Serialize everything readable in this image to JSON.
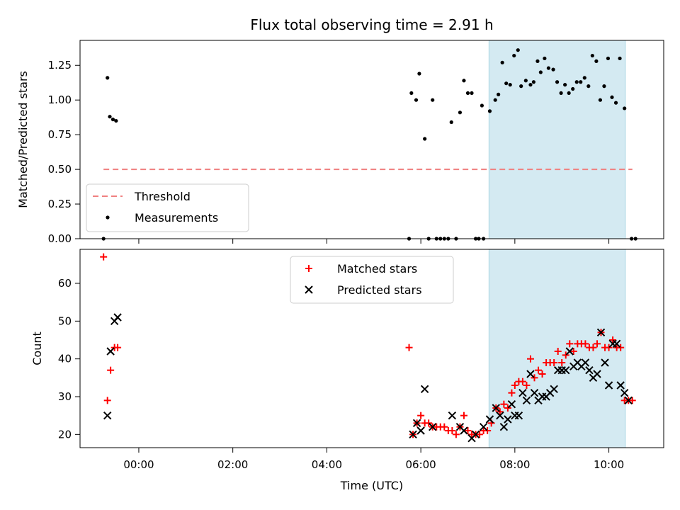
{
  "chart_data": [
    {
      "type": "scatter",
      "title": "Flux total observing time = 2.91 h",
      "xlabel": "",
      "ylabel": "Matched/Predicted stars",
      "xlim": [
        "-1:15",
        "11:10"
      ],
      "ylim": [
        0,
        1.43
      ],
      "yticks": [
        "0.00",
        "0.25",
        "0.50",
        "0.75",
        "1.00",
        "1.25"
      ],
      "highlight_span": {
        "start": "7:27",
        "end": "10:21",
        "color": "#d4eaf2"
      },
      "legend_position": "lower-left",
      "legend": {
        "threshold_label": "Threshold",
        "measurements_label": "Measurements"
      },
      "threshold": {
        "value": 0.5,
        "x_start": "-0:45",
        "x_end": "10:30",
        "color": "#f08080"
      },
      "measurements": [
        [
          "-0:45",
          0.0
        ],
        [
          "-0:40",
          1.16
        ],
        [
          "-0:37",
          0.88
        ],
        [
          "-0:33",
          0.86
        ],
        [
          "-0:29",
          0.85
        ],
        [
          "5:45",
          0.0
        ],
        [
          "5:48",
          1.05
        ],
        [
          "5:54",
          1.0
        ],
        [
          "5:58",
          1.19
        ],
        [
          "6:05",
          0.72
        ],
        [
          "6:10",
          0.0
        ],
        [
          "6:15",
          1.0
        ],
        [
          "6:20",
          0.0
        ],
        [
          "6:25",
          0.0
        ],
        [
          "6:30",
          0.0
        ],
        [
          "6:35",
          0.0
        ],
        [
          "6:39",
          0.84
        ],
        [
          "6:45",
          0.0
        ],
        [
          "6:50",
          0.91
        ],
        [
          "6:55",
          1.14
        ],
        [
          "7:00",
          1.05
        ],
        [
          "7:05",
          1.05
        ],
        [
          "7:10",
          0.0
        ],
        [
          "7:14",
          0.0
        ],
        [
          "7:18",
          0.96
        ],
        [
          "7:20",
          0.0
        ],
        [
          "7:28",
          0.92
        ],
        [
          "7:35",
          1.0
        ],
        [
          "7:39",
          1.04
        ],
        [
          "7:44",
          1.27
        ],
        [
          "7:49",
          1.12
        ],
        [
          "7:54",
          1.11
        ],
        [
          "7:59",
          1.32
        ],
        [
          "8:04",
          1.36
        ],
        [
          "8:08",
          1.1
        ],
        [
          "8:14",
          1.14
        ],
        [
          "8:20",
          1.11
        ],
        [
          "8:24",
          1.13
        ],
        [
          "8:29",
          1.28
        ],
        [
          "8:33",
          1.2
        ],
        [
          "8:38",
          1.3
        ],
        [
          "8:43",
          1.23
        ],
        [
          "8:49",
          1.22
        ],
        [
          "8:54",
          1.13
        ],
        [
          "8:59",
          1.05
        ],
        [
          "9:04",
          1.11
        ],
        [
          "9:09",
          1.05
        ],
        [
          "9:14",
          1.08
        ],
        [
          "9:19",
          1.13
        ],
        [
          "9:24",
          1.13
        ],
        [
          "9:29",
          1.16
        ],
        [
          "9:34",
          1.1
        ],
        [
          "9:39",
          1.32
        ],
        [
          "9:44",
          1.28
        ],
        [
          "9:49",
          1.0
        ],
        [
          "9:54",
          1.1
        ],
        [
          "9:59",
          1.3
        ],
        [
          "10:04",
          1.02
        ],
        [
          "10:09",
          0.98
        ],
        [
          "10:14",
          1.3
        ],
        [
          "10:20",
          0.94
        ],
        [
          "10:29",
          0.0
        ],
        [
          "10:34",
          0.0
        ]
      ]
    },
    {
      "type": "scatter",
      "title": "",
      "xlabel": "Time (UTC)",
      "ylabel": "Count",
      "xlim": [
        "-1:15",
        "11:10"
      ],
      "ylim": [
        16.5,
        69
      ],
      "yticks": [
        "20",
        "30",
        "40",
        "50",
        "60"
      ],
      "xticks": [
        "00:00",
        "02:00",
        "04:00",
        "06:00",
        "08:00",
        "10:00"
      ],
      "highlight_span": {
        "start": "7:27",
        "end": "10:21",
        "color": "#d4eaf2"
      },
      "legend_position": "upper-center",
      "series": [
        {
          "name": "Matched stars",
          "marker": "plus",
          "color": "#ff0000",
          "points": [
            [
              "-0:45",
              67
            ],
            [
              "-0:40",
              29
            ],
            [
              "-0:36",
              37
            ],
            [
              "-0:31",
              43
            ],
            [
              "-0:27",
              43
            ],
            [
              "5:45",
              43
            ],
            [
              "5:50",
              20
            ],
            [
              "5:55",
              23
            ],
            [
              "6:00",
              25
            ],
            [
              "6:05",
              23
            ],
            [
              "6:10",
              23
            ],
            [
              "6:15",
              22
            ],
            [
              "6:20",
              22
            ],
            [
              "6:25",
              22
            ],
            [
              "6:30",
              22
            ],
            [
              "6:35",
              21
            ],
            [
              "6:40",
              21
            ],
            [
              "6:45",
              20
            ],
            [
              "6:50",
              22
            ],
            [
              "6:55",
              25
            ],
            [
              "7:00",
              21
            ],
            [
              "7:05",
              20
            ],
            [
              "7:10",
              20
            ],
            [
              "7:15",
              20
            ],
            [
              "7:20",
              21
            ],
            [
              "7:25",
              21
            ],
            [
              "7:30",
              23
            ],
            [
              "7:36",
              27
            ],
            [
              "7:41",
              26
            ],
            [
              "7:46",
              28
            ],
            [
              "7:51",
              27
            ],
            [
              "7:56",
              31
            ],
            [
              "8:00",
              33
            ],
            [
              "8:05",
              34
            ],
            [
              "8:10",
              34
            ],
            [
              "8:15",
              33
            ],
            [
              "8:20",
              40
            ],
            [
              "8:25",
              35
            ],
            [
              "8:30",
              37
            ],
            [
              "8:35",
              36
            ],
            [
              "8:40",
              39
            ],
            [
              "8:45",
              39
            ],
            [
              "8:50",
              39
            ],
            [
              "8:55",
              42
            ],
            [
              "9:00",
              39
            ],
            [
              "9:05",
              41
            ],
            [
              "9:10",
              44
            ],
            [
              "9:15",
              42
            ],
            [
              "9:20",
              44
            ],
            [
              "9:25",
              44
            ],
            [
              "9:30",
              44
            ],
            [
              "9:35",
              43
            ],
            [
              "9:40",
              43
            ],
            [
              "9:45",
              44
            ],
            [
              "9:50",
              47
            ],
            [
              "9:55",
              43
            ],
            [
              "10:00",
              43
            ],
            [
              "10:05",
              45
            ],
            [
              "10:10",
              43
            ],
            [
              "10:15",
              43
            ],
            [
              "10:20",
              29
            ],
            [
              "10:25",
              29
            ],
            [
              "10:30",
              29
            ]
          ]
        },
        {
          "name": "Predicted stars",
          "marker": "x",
          "color": "#000000",
          "points": [
            [
              "-0:40",
              25
            ],
            [
              "-0:36",
              42
            ],
            [
              "-0:31",
              50
            ],
            [
              "-0:27",
              51
            ],
            [
              "5:50",
              20
            ],
            [
              "5:55",
              23
            ],
            [
              "6:00",
              21
            ],
            [
              "6:05",
              32
            ],
            [
              "6:15",
              22
            ],
            [
              "6:40",
              25
            ],
            [
              "6:50",
              22
            ],
            [
              "6:55",
              21
            ],
            [
              "7:05",
              19
            ],
            [
              "7:10",
              20
            ],
            [
              "7:20",
              22
            ],
            [
              "7:28",
              24
            ],
            [
              "7:36",
              27
            ],
            [
              "7:41",
              25
            ],
            [
              "7:46",
              22
            ],
            [
              "7:51",
              24
            ],
            [
              "7:56",
              28
            ],
            [
              "8:00",
              25
            ],
            [
              "8:05",
              25
            ],
            [
              "8:10",
              31
            ],
            [
              "8:15",
              29
            ],
            [
              "8:20",
              36
            ],
            [
              "8:25",
              31
            ],
            [
              "8:30",
              29
            ],
            [
              "8:35",
              30
            ],
            [
              "8:40",
              30
            ],
            [
              "8:45",
              31
            ],
            [
              "8:50",
              32
            ],
            [
              "8:55",
              37
            ],
            [
              "9:00",
              37
            ],
            [
              "9:05",
              37
            ],
            [
              "9:10",
              42
            ],
            [
              "9:15",
              38
            ],
            [
              "9:20",
              39
            ],
            [
              "9:25",
              38
            ],
            [
              "9:30",
              39
            ],
            [
              "9:35",
              37
            ],
            [
              "9:40",
              35
            ],
            [
              "9:45",
              36
            ],
            [
              "9:50",
              47
            ],
            [
              "9:55",
              39
            ],
            [
              "10:00",
              33
            ],
            [
              "10:05",
              44
            ],
            [
              "10:10",
              44
            ],
            [
              "10:15",
              33
            ],
            [
              "10:20",
              31
            ],
            [
              "10:25",
              29
            ]
          ]
        }
      ]
    }
  ]
}
